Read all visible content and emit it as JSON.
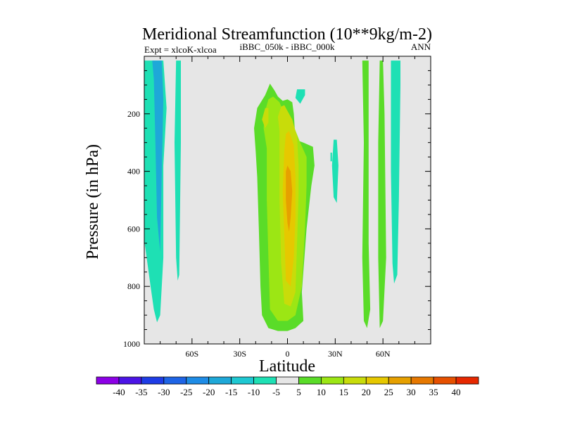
{
  "chart_data": {
    "type": "heatmap",
    "title": "Meridional Streamfunction (10**9kg/m-2)",
    "subtitle_left": "Expt = xlcoK-xlcoa",
    "subtitle_center": "iBBC_050k - iBBC_000k",
    "subtitle_right": "ANN",
    "xlabel": "Latitude",
    "ylabel": "Pressure (in hPa)",
    "xlim": [
      -90,
      90
    ],
    "ylim": [
      1000,
      0
    ],
    "x_ticks": [
      {
        "value": -60,
        "label": "60S"
      },
      {
        "value": -30,
        "label": "30S"
      },
      {
        "value": 0,
        "label": "0"
      },
      {
        "value": 30,
        "label": "30N"
      },
      {
        "value": 60,
        "label": "60N"
      }
    ],
    "y_ticks": [
      {
        "value": 200,
        "label": "200"
      },
      {
        "value": 400,
        "label": "400"
      },
      {
        "value": 600,
        "label": "600"
      },
      {
        "value": 800,
        "label": "800"
      },
      {
        "value": 1000,
        "label": "1000"
      }
    ],
    "background_color": "#e6e6e6",
    "colorbar": {
      "levels": [
        "-40",
        "-35",
        "-30",
        "-25",
        "-20",
        "-15",
        "-10",
        "-5",
        "5",
        "10",
        "15",
        "20",
        "25",
        "30",
        "35",
        "40"
      ],
      "colors": [
        "#8c00e6",
        "#4b14e6",
        "#1e3ce6",
        "#1e64e6",
        "#1e8ce6",
        "#1ea8d8",
        "#1ec8d2",
        "#1ee0b4",
        "#e6e6e6",
        "#5adc28",
        "#9ce614",
        "#c8dc0a",
        "#e6c800",
        "#e6a000",
        "#e67800",
        "#e65000",
        "#e62800"
      ]
    },
    "regions": [
      {
        "level": -5,
        "color": "#1ee0b4",
        "points": [
          [
            -90,
            15
          ],
          [
            -78,
            15
          ],
          [
            -76,
            180
          ],
          [
            -78,
            380
          ],
          [
            -78,
            700
          ],
          [
            -80,
            900
          ],
          [
            -82,
            925
          ],
          [
            -84,
            880
          ],
          [
            -86,
            800
          ],
          [
            -88,
            720
          ],
          [
            -90,
            640
          ]
        ]
      },
      {
        "level": -5,
        "color": "#1ee0b4",
        "points": [
          [
            -70,
            15
          ],
          [
            -67,
            15
          ],
          [
            -67,
            300
          ],
          [
            -68,
            760
          ],
          [
            -69,
            780
          ],
          [
            -70,
            700
          ],
          [
            -71,
            300
          ]
        ]
      },
      {
        "level": -10,
        "color": "#1ea8d8",
        "points": [
          [
            -85,
            15
          ],
          [
            -79,
            15
          ],
          [
            -78,
            150
          ],
          [
            -79,
            400
          ],
          [
            -80,
            680
          ],
          [
            -82,
            560
          ],
          [
            -83,
            300
          ],
          [
            -84,
            80
          ]
        ]
      },
      {
        "level": -5,
        "color": "#1ee0b4",
        "points": [
          [
            6,
            115
          ],
          [
            11,
            115
          ],
          [
            11,
            135
          ],
          [
            8,
            165
          ],
          [
            5,
            145
          ]
        ]
      },
      {
        "level": -5,
        "color": "#1ee0b4",
        "points": [
          [
            29,
            290
          ],
          [
            31,
            290
          ],
          [
            32,
            380
          ],
          [
            31,
            510
          ],
          [
            29,
            490
          ],
          [
            28,
            380
          ]
        ]
      },
      {
        "level": -5,
        "color": "#1ee0b4",
        "points": [
          [
            27,
            335
          ],
          [
            28,
            335
          ],
          [
            28,
            365
          ],
          [
            27,
            365
          ]
        ]
      },
      {
        "level": -5,
        "color": "#1ee0b4",
        "points": [
          [
            65,
            15
          ],
          [
            71,
            15
          ],
          [
            71,
            100
          ],
          [
            70,
            500
          ],
          [
            69,
            760
          ],
          [
            67,
            790
          ],
          [
            66,
            720
          ],
          [
            65,
            400
          ]
        ]
      },
      {
        "level": 5,
        "color": "#5adc28",
        "points": [
          [
            -20,
            330
          ],
          [
            -21,
            250
          ],
          [
            -19,
            180
          ],
          [
            -14,
            135
          ],
          [
            -11,
            95
          ],
          [
            -8,
            120
          ],
          [
            -6,
            140
          ],
          [
            -3,
            155
          ],
          [
            0,
            150
          ],
          [
            3,
            160
          ],
          [
            4,
            200
          ],
          [
            5,
            290
          ],
          [
            10,
            300
          ],
          [
            16,
            315
          ],
          [
            17,
            380
          ],
          [
            15,
            450
          ],
          [
            12,
            600
          ],
          [
            9,
            820
          ],
          [
            10,
            920
          ],
          [
            5,
            945
          ],
          [
            0,
            955
          ],
          [
            -6,
            955
          ],
          [
            -12,
            945
          ],
          [
            -16,
            900
          ],
          [
            -17,
            800
          ],
          [
            -18,
            600
          ],
          [
            -19,
            420
          ]
        ]
      },
      {
        "level": 5,
        "color": "#5adc28",
        "points": [
          [
            47,
            15
          ],
          [
            51,
            15
          ],
          [
            51,
            300
          ],
          [
            51,
            650
          ],
          [
            52,
            880
          ],
          [
            50,
            945
          ],
          [
            48,
            920
          ],
          [
            47,
            700
          ],
          [
            48,
            300
          ]
        ]
      },
      {
        "level": 5,
        "color": "#5adc28",
        "points": [
          [
            58,
            15
          ],
          [
            60,
            15
          ],
          [
            61,
            200
          ],
          [
            62,
            700
          ],
          [
            60,
            920
          ],
          [
            58,
            945
          ],
          [
            57,
            700
          ],
          [
            57,
            300
          ]
        ]
      },
      {
        "level": 10,
        "color": "#9ce614",
        "points": [
          [
            -13,
            320
          ],
          [
            -15,
            250
          ],
          [
            -14,
            190
          ],
          [
            -12,
            150
          ],
          [
            -9,
            140
          ],
          [
            -5,
            160
          ],
          [
            -2,
            200
          ],
          [
            3,
            230
          ],
          [
            8,
            300
          ],
          [
            12,
            350
          ],
          [
            12,
            450
          ],
          [
            11,
            600
          ],
          [
            9,
            800
          ],
          [
            5,
            900
          ],
          [
            0,
            920
          ],
          [
            -6,
            920
          ],
          [
            -11,
            880
          ],
          [
            -12,
            700
          ],
          [
            -13,
            500
          ]
        ]
      },
      {
        "level": 15,
        "color": "#c8dc0a",
        "points": [
          [
            -5,
            260
          ],
          [
            -6,
            210
          ],
          [
            -4,
            175
          ],
          [
            -2,
            170
          ],
          [
            0,
            190
          ],
          [
            3,
            220
          ],
          [
            6,
            280
          ],
          [
            7,
            380
          ],
          [
            7,
            480
          ],
          [
            6,
            650
          ],
          [
            5,
            820
          ],
          [
            2,
            870
          ],
          [
            -2,
            860
          ],
          [
            -4,
            720
          ],
          [
            -5,
            500
          ]
        ]
      },
      {
        "level": 15,
        "color": "#c8dc0a",
        "points": [
          [
            -16,
            220
          ],
          [
            -14,
            180
          ],
          [
            -12,
            180
          ],
          [
            -12,
            230
          ],
          [
            -14,
            250
          ]
        ]
      },
      {
        "level": 20,
        "color": "#e6c800",
        "points": [
          [
            -2,
            330
          ],
          [
            -1,
            270
          ],
          [
            1,
            260
          ],
          [
            4,
            310
          ],
          [
            5,
            420
          ],
          [
            5,
            560
          ],
          [
            4,
            700
          ],
          [
            2,
            800
          ],
          [
            -1,
            780
          ],
          [
            -2,
            620
          ],
          [
            -3,
            470
          ]
        ]
      },
      {
        "level": 25,
        "color": "#e6a000",
        "points": [
          [
            -1,
            400
          ],
          [
            0,
            380
          ],
          [
            2,
            400
          ],
          [
            3,
            470
          ],
          [
            2,
            560
          ],
          [
            1,
            610
          ],
          [
            0,
            580
          ],
          [
            -1,
            500
          ]
        ]
      }
    ]
  }
}
